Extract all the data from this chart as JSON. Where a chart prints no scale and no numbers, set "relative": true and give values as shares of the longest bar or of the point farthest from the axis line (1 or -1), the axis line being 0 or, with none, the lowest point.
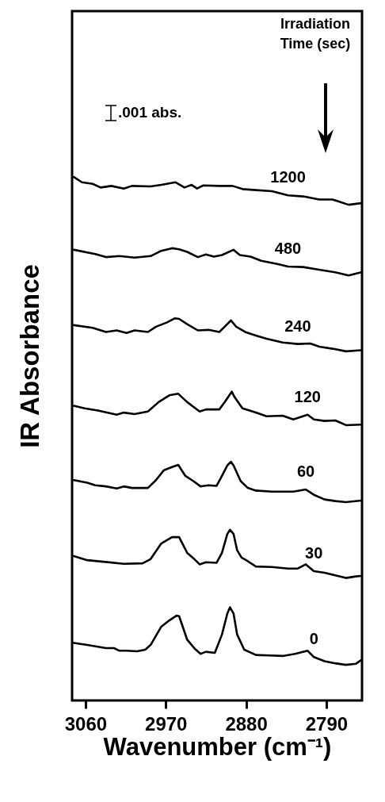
{
  "chart_data": {
    "type": "line",
    "xlabel": "Wavenumber (cm⁻¹)",
    "ylabel": "IR Absorbance",
    "legend_title": "Irradiation Time (sec)",
    "annotations": [
      ".001 abs."
    ],
    "relative": true,
    "xlim": [
      3075,
      2750
    ],
    "xticks": [
      3060,
      2970,
      2880,
      2790
    ],
    "grid": false,
    "marker": "none",
    "line_style": "solid",
    "series": [
      {
        "name": "1200",
        "color": "#000000",
        "x": [
          3073,
          3064,
          3052,
          3043,
          3031,
          3017,
          3008,
          2987,
          2975,
          2959,
          2949,
          2941,
          2935,
          2928,
          2910,
          2895,
          2884,
          2869,
          2851,
          2833,
          2816,
          2798,
          2783,
          2765,
          2751
        ],
        "values": [
          1,
          0.99,
          0.987,
          0.98,
          0.983,
          0.978,
          0.983,
          0.982,
          0.985,
          0.99,
          0.98,
          0.985,
          0.978,
          0.984,
          0.983,
          0.983,
          0.977,
          0.975,
          0.973,
          0.965,
          0.963,
          0.957,
          0.957,
          0.947,
          0.95
        ]
      },
      {
        "name": "480",
        "color": "#000000",
        "x": [
          3073,
          3049,
          3037,
          3022,
          3005,
          2987,
          2975,
          2963,
          2955,
          2946,
          2934,
          2925,
          2916,
          2907,
          2894,
          2887,
          2875,
          2863,
          2845,
          2833,
          2816,
          2798,
          2780,
          2765,
          2751
        ],
        "values": [
          0.861,
          0.853,
          0.847,
          0.849,
          0.846,
          0.849,
          0.859,
          0.864,
          0.862,
          0.857,
          0.847,
          0.852,
          0.848,
          0.851,
          0.861,
          0.851,
          0.848,
          0.84,
          0.834,
          0.829,
          0.828,
          0.823,
          0.818,
          0.812,
          0.818
        ]
      },
      {
        "name": "240",
        "color": "#000000",
        "x": [
          3073,
          3052,
          3037,
          3025,
          3014,
          3005,
          2990,
          2981,
          2969,
          2960,
          2955,
          2946,
          2934,
          2922,
          2910,
          2904,
          2897,
          2891,
          2881,
          2869,
          2857,
          2839,
          2822,
          2808,
          2798,
          2783,
          2768,
          2751
        ],
        "values": [
          0.717,
          0.712,
          0.704,
          0.707,
          0.702,
          0.707,
          0.704,
          0.714,
          0.722,
          0.73,
          0.729,
          0.719,
          0.707,
          0.708,
          0.704,
          0.714,
          0.726,
          0.714,
          0.704,
          0.697,
          0.691,
          0.684,
          0.681,
          0.682,
          0.676,
          0.672,
          0.667,
          0.669
        ]
      },
      {
        "name": "120",
        "color": "#000000",
        "x": [
          3073,
          3061,
          3046,
          3025,
          3017,
          3005,
          2990,
          2978,
          2966,
          2956,
          2946,
          2932,
          2925,
          2910,
          2904,
          2896,
          2893,
          2884,
          2869,
          2857,
          2839,
          2827,
          2811,
          2804,
          2792,
          2780,
          2768,
          2751
        ],
        "values": [
          0.563,
          0.558,
          0.554,
          0.546,
          0.55,
          0.547,
          0.552,
          0.57,
          0.583,
          0.586,
          0.57,
          0.552,
          0.556,
          0.556,
          0.57,
          0.59,
          0.58,
          0.558,
          0.55,
          0.543,
          0.544,
          0.537,
          0.546,
          0.537,
          0.534,
          0.535,
          0.526,
          0.527
        ]
      },
      {
        "name": "60",
        "color": "#000000",
        "x": [
          3073,
          3058,
          3049,
          3037,
          3025,
          3017,
          3008,
          2990,
          2981,
          2972,
          2963,
          2956,
          2948,
          2939,
          2931,
          2922,
          2913,
          2907,
          2901,
          2897,
          2894,
          2886,
          2878,
          2869,
          2851,
          2827,
          2813,
          2804,
          2792,
          2780,
          2768,
          2751
        ],
        "values": [
          0.421,
          0.416,
          0.411,
          0.409,
          0.405,
          0.409,
          0.406,
          0.406,
          0.421,
          0.44,
          0.446,
          0.45,
          0.429,
          0.419,
          0.409,
          0.411,
          0.41,
          0.429,
          0.449,
          0.456,
          0.449,
          0.419,
          0.406,
          0.401,
          0.399,
          0.399,
          0.403,
          0.393,
          0.384,
          0.381,
          0.379,
          0.382
        ]
      },
      {
        "name": "30",
        "color": "#000000",
        "x": [
          3073,
          3058,
          3040,
          3017,
          2996,
          2987,
          2975,
          2963,
          2955,
          2946,
          2938,
          2932,
          2925,
          2913,
          2907,
          2901,
          2898,
          2894,
          2890,
          2885,
          2878,
          2869,
          2851,
          2833,
          2822,
          2813,
          2804,
          2792,
          2780,
          2768,
          2757,
          2751
        ],
        "values": [
          0.276,
          0.268,
          0.265,
          0.261,
          0.262,
          0.27,
          0.3,
          0.312,
          0.312,
          0.282,
          0.27,
          0.26,
          0.264,
          0.263,
          0.282,
          0.318,
          0.326,
          0.318,
          0.287,
          0.273,
          0.266,
          0.256,
          0.255,
          0.252,
          0.252,
          0.26,
          0.247,
          0.244,
          0.239,
          0.234,
          0.237,
          0.238
        ]
      },
      {
        "name": "0",
        "color": "#000000",
        "x": [
          3073,
          3058,
          3037,
          3028,
          3022,
          3014,
          3002,
          2993,
          2987,
          2975,
          2966,
          2958,
          2955,
          2946,
          2937,
          2931,
          2925,
          2915,
          2907,
          2901,
          2898,
          2894,
          2890,
          2882,
          2869,
          2854,
          2839,
          2825,
          2811,
          2804,
          2792,
          2780,
          2768,
          2757,
          2751
        ],
        "values": [
          0.11,
          0.106,
          0.1,
          0.1,
          0.095,
          0.095,
          0.094,
          0.097,
          0.106,
          0.141,
          0.153,
          0.162,
          0.161,
          0.116,
          0.098,
          0.089,
          0.093,
          0.091,
          0.126,
          0.166,
          0.178,
          0.166,
          0.126,
          0.097,
          0.087,
          0.086,
          0.085,
          0.089,
          0.095,
          0.083,
          0.075,
          0.071,
          0.068,
          0.07,
          0.077
        ]
      }
    ]
  }
}
